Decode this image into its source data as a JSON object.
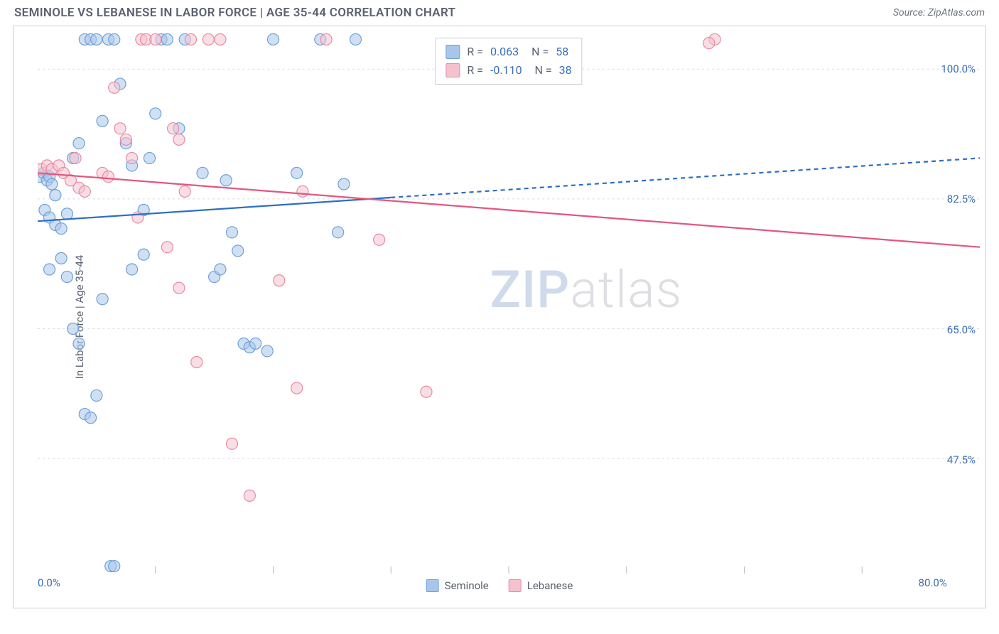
{
  "header": {
    "title": "SEMINOLE VS LEBANESE IN LABOR FORCE | AGE 35-44 CORRELATION CHART",
    "source": "Source: ZipAtlas.com"
  },
  "watermark": {
    "part1": "ZIP",
    "part2": "atlas"
  },
  "chart": {
    "type": "scatter",
    "ylabel": "In Labor Force | Age 35-44",
    "xlim": [
      0,
      80
    ],
    "ylim": [
      32,
      105
    ],
    "xtick_values": [
      0,
      80
    ],
    "xtick_labels": [
      "0.0%",
      "80.0%"
    ],
    "xtick_minor": [
      10,
      20,
      30,
      40,
      50,
      60,
      70
    ],
    "ytick_values": [
      47.5,
      65.0,
      82.5,
      100.0
    ],
    "ytick_labels": [
      "47.5%",
      "65.0%",
      "82.5%",
      "100.0%"
    ],
    "grid_color": "#d8dbe0",
    "axis_color": "#c9ccd1",
    "axis_tick_color": "#b5b9c0",
    "background_color": "#ffffff",
    "marker_radius": 8,
    "marker_opacity": 0.55,
    "marker_stroke_width": 1.2,
    "line_width": 2.2,
    "dash_pattern": "6,5",
    "series": [
      {
        "name": "Seminole",
        "fill_color": "#a9c6ea",
        "stroke_color": "#6fa0d8",
        "line_color": "#2c6fc2",
        "R": "0.063",
        "N": "58",
        "trend": {
          "x1": 0,
          "y1": 79.5,
          "x2": 80,
          "y2": 88.0,
          "solid_until_x": 30
        },
        "points": [
          [
            0.2,
            85.5
          ],
          [
            0.5,
            86.0
          ],
          [
            0.8,
            85.0
          ],
          [
            1.0,
            85.5
          ],
          [
            1.2,
            84.5
          ],
          [
            1.5,
            83.0
          ],
          [
            0.6,
            81.0
          ],
          [
            1.0,
            80.0
          ],
          [
            1.5,
            79.0
          ],
          [
            2.0,
            78.5
          ],
          [
            2.5,
            80.5
          ],
          [
            3.0,
            88.0
          ],
          [
            3.5,
            90.0
          ],
          [
            4.0,
            104.0
          ],
          [
            4.5,
            104.0
          ],
          [
            5.0,
            104.0
          ],
          [
            5.5,
            93.0
          ],
          [
            6.0,
            104.0
          ],
          [
            6.5,
            104.0
          ],
          [
            7.0,
            98.0
          ],
          [
            7.5,
            90.0
          ],
          [
            8.0,
            87.0
          ],
          [
            9.0,
            81.0
          ],
          [
            9.5,
            88.0
          ],
          [
            10.0,
            94.0
          ],
          [
            10.5,
            104.0
          ],
          [
            11.0,
            104.0
          ],
          [
            12.0,
            92.0
          ],
          [
            12.5,
            104.0
          ],
          [
            1.0,
            73.0
          ],
          [
            2.0,
            74.5
          ],
          [
            2.5,
            72.0
          ],
          [
            3.0,
            65.0
          ],
          [
            3.5,
            63.0
          ],
          [
            4.0,
            53.5
          ],
          [
            4.5,
            53.0
          ],
          [
            5.0,
            56.0
          ],
          [
            5.5,
            69.0
          ],
          [
            8.0,
            73.0
          ],
          [
            9.0,
            75.0
          ],
          [
            14.0,
            86.0
          ],
          [
            15.0,
            72.0
          ],
          [
            15.5,
            73.0
          ],
          [
            16.0,
            85.0
          ],
          [
            16.5,
            78.0
          ],
          [
            17.0,
            75.5
          ],
          [
            17.5,
            63.0
          ],
          [
            18.0,
            62.5
          ],
          [
            18.5,
            63.0
          ],
          [
            19.5,
            62.0
          ],
          [
            20.0,
            104.0
          ],
          [
            22.0,
            86.0
          ],
          [
            24.0,
            104.0
          ],
          [
            25.5,
            78.0
          ],
          [
            26.0,
            84.5
          ],
          [
            27.0,
            104.0
          ],
          [
            6.2,
            33.0
          ],
          [
            6.5,
            33.0
          ]
        ]
      },
      {
        "name": "Lebanese",
        "fill_color": "#f4c2cf",
        "stroke_color": "#e88ba4",
        "line_color": "#e4567e",
        "R": "-0.110",
        "N": "38",
        "trend": {
          "x1": 0,
          "y1": 86.0,
          "x2": 80,
          "y2": 76.0,
          "solid_until_x": 80
        },
        "points": [
          [
            0.3,
            86.5
          ],
          [
            0.8,
            87.0
          ],
          [
            1.2,
            86.5
          ],
          [
            1.8,
            87.0
          ],
          [
            2.2,
            86.0
          ],
          [
            2.8,
            85.0
          ],
          [
            3.2,
            88.0
          ],
          [
            3.5,
            84.0
          ],
          [
            4.0,
            83.5
          ],
          [
            5.5,
            86.0
          ],
          [
            6.0,
            85.5
          ],
          [
            6.5,
            97.5
          ],
          [
            7.0,
            92.0
          ],
          [
            7.5,
            90.5
          ],
          [
            8.0,
            88.0
          ],
          [
            8.5,
            80.0
          ],
          [
            8.8,
            104.0
          ],
          [
            9.2,
            104.0
          ],
          [
            10.0,
            104.0
          ],
          [
            11.5,
            92.0
          ],
          [
            12.0,
            90.5
          ],
          [
            12.5,
            83.5
          ],
          [
            13.0,
            104.0
          ],
          [
            14.5,
            104.0
          ],
          [
            15.5,
            104.0
          ],
          [
            11.0,
            76.0
          ],
          [
            12.0,
            70.5
          ],
          [
            13.5,
            60.5
          ],
          [
            16.5,
            49.5
          ],
          [
            18.0,
            42.5
          ],
          [
            20.5,
            71.5
          ],
          [
            22.5,
            83.5
          ],
          [
            22.0,
            57.0
          ],
          [
            24.5,
            104.0
          ],
          [
            29.0,
            77.0
          ],
          [
            33.0,
            56.5
          ],
          [
            57.5,
            104.0
          ],
          [
            57.0,
            103.5
          ]
        ]
      }
    ],
    "bottom_legend": [
      {
        "label": "Seminole",
        "fill": "#a9c6ea",
        "stroke": "#6fa0d8"
      },
      {
        "label": "Lebanese",
        "fill": "#f4c2cf",
        "stroke": "#e88ba4"
      }
    ]
  }
}
